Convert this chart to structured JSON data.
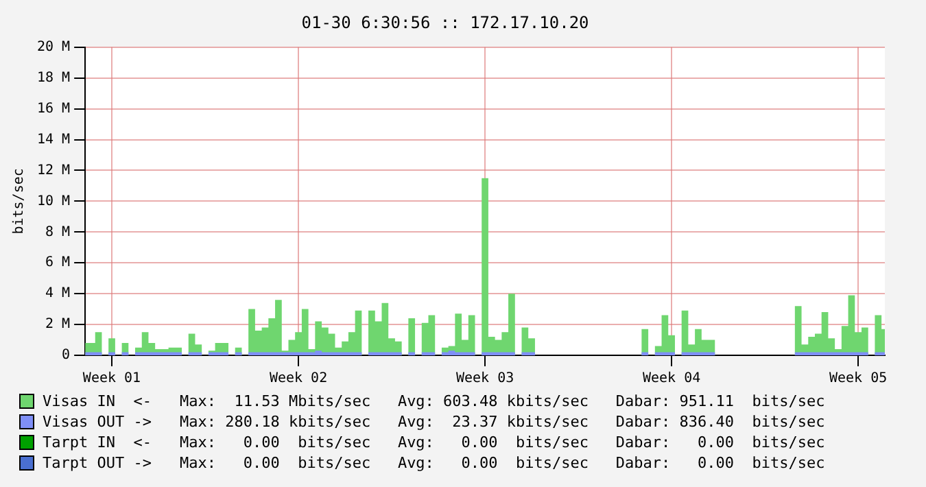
{
  "chart_data": {
    "type": "area",
    "title": "01-30 6:30:56 :: 172.17.10.20",
    "ylabel": "bits/sec",
    "categories": [
      null,
      null,
      null,
      null,
      "Week 01",
      null,
      null,
      null,
      null,
      null,
      null,
      null,
      null,
      null,
      null,
      null,
      null,
      null,
      null,
      null,
      null,
      null,
      null,
      null,
      null,
      null,
      null,
      null,
      null,
      null,
      null,
      null,
      "Week 02",
      null,
      null,
      null,
      null,
      null,
      null,
      null,
      null,
      null,
      null,
      null,
      null,
      null,
      null,
      null,
      null,
      null,
      null,
      null,
      null,
      null,
      null,
      null,
      null,
      null,
      null,
      null,
      "Week 03",
      null,
      null,
      null,
      null,
      null,
      null,
      null,
      null,
      null,
      null,
      null,
      null,
      null,
      null,
      null,
      null,
      null,
      null,
      null,
      null,
      null,
      null,
      null,
      null,
      null,
      null,
      null,
      "Week 04",
      null,
      null,
      null,
      null,
      null,
      null,
      null,
      null,
      null,
      null,
      null,
      null,
      null,
      null,
      null,
      null,
      null,
      null,
      null,
      null,
      null,
      null,
      null,
      null,
      null,
      null,
      null,
      "Week 05",
      null,
      null,
      null,
      null
    ],
    "ylim": [
      0,
      20
    ],
    "yticks": [
      0,
      {
        "value": 2,
        "label": "2 M"
      },
      {
        "value": 4,
        "label": "4 M"
      },
      {
        "value": 6,
        "label": "6 M"
      },
      {
        "value": 8,
        "label": "8 M"
      },
      {
        "value": 10,
        "label": "10 M"
      },
      {
        "value": 12,
        "label": "12 M"
      },
      {
        "value": 14,
        "label": "14 M"
      },
      {
        "value": 16,
        "label": "16 M"
      },
      {
        "value": 18,
        "label": "18 M"
      },
      {
        "value": 20,
        "label": "20 M"
      }
    ],
    "grid": true,
    "legend": "bottom",
    "series": [
      {
        "name": "Visas IN  <-",
        "color": "#6fd66f",
        "values": [
          0.8,
          0.8,
          1.5,
          0,
          1.1,
          0,
          0.8,
          0,
          0.5,
          1.5,
          0.8,
          0.4,
          0.4,
          0.5,
          0.5,
          0,
          1.4,
          0.7,
          0,
          0.3,
          0.8,
          0.8,
          0,
          0.5,
          0,
          3.0,
          1.6,
          1.8,
          2.4,
          3.6,
          0.3,
          1.0,
          1.5,
          3.0,
          0.4,
          2.2,
          1.8,
          1.4,
          0.5,
          0.9,
          1.5,
          2.9,
          0,
          2.9,
          2.2,
          3.4,
          1.1,
          0.9,
          0,
          2.4,
          0,
          2.1,
          2.6,
          0,
          0.5,
          0.6,
          2.7,
          1.0,
          2.6,
          0,
          11.5,
          1.2,
          1.0,
          1.5,
          4.0,
          0,
          1.8,
          1.1,
          0,
          0,
          0,
          0,
          0,
          0,
          0,
          0,
          0,
          0,
          0,
          0,
          0,
          0,
          0,
          0,
          1.7,
          0,
          0.6,
          2.6,
          1.3,
          0,
          2.9,
          0.7,
          1.7,
          1.0,
          1.0,
          0,
          0,
          0,
          0,
          0,
          0,
          0,
          0,
          0,
          0,
          0,
          0,
          3.2,
          0.7,
          1.2,
          1.4,
          2.8,
          1.1,
          0.4,
          1.9,
          3.9,
          1.5,
          1.8,
          0,
          2.6,
          1.7
        ]
      },
      {
        "name": "Visas OUT ->",
        "color": "#7f8ff7",
        "values": [
          0.2,
          0.2,
          0.2,
          0,
          0.2,
          0,
          0.2,
          0,
          0.2,
          0.2,
          0.2,
          0.2,
          0.2,
          0.2,
          0.2,
          0,
          0.2,
          0.2,
          0,
          0.2,
          0.2,
          0.2,
          0,
          0.2,
          0,
          0.2,
          0.2,
          0.2,
          0.2,
          0.2,
          0.2,
          0.2,
          0.2,
          0.2,
          0.2,
          0.3,
          0.2,
          0.2,
          0.2,
          0.2,
          0.2,
          0.2,
          0,
          0.2,
          0.2,
          0.2,
          0.2,
          0.2,
          0,
          0.2,
          0,
          0.2,
          0.2,
          0,
          0.2,
          0.3,
          0.2,
          0.2,
          0.2,
          0,
          0.2,
          0.2,
          0.2,
          0.2,
          0.2,
          0,
          0.2,
          0.2,
          0,
          0,
          0,
          0,
          0,
          0,
          0,
          0,
          0,
          0,
          0,
          0,
          0,
          0,
          0,
          0,
          0.2,
          0,
          0.2,
          0.2,
          0.2,
          0,
          0.2,
          0.2,
          0.2,
          0.2,
          0.2,
          0,
          0,
          0,
          0,
          0,
          0,
          0,
          0,
          0,
          0,
          0,
          0,
          0.2,
          0.2,
          0.2,
          0.2,
          0.2,
          0.2,
          0.2,
          0.2,
          0.2,
          0.2,
          0.2,
          0,
          0.2,
          0.2
        ]
      },
      {
        "name": "Tarpt IN  <-",
        "color": "#00a000",
        "values": [
          null,
          null,
          null,
          null,
          null,
          null,
          null,
          null,
          null,
          null,
          null,
          null,
          null,
          null,
          null,
          null,
          null,
          null,
          null,
          null,
          null,
          null,
          null,
          null,
          null,
          null,
          null,
          null,
          null,
          null,
          null,
          null,
          null,
          null,
          null,
          null,
          null,
          null,
          null,
          null,
          null,
          null,
          null,
          null,
          null,
          null,
          null,
          null,
          null,
          null,
          null,
          null,
          null,
          null,
          null,
          null,
          null,
          null,
          null,
          null,
          null,
          null,
          null,
          null,
          null,
          null,
          null,
          null,
          null,
          null,
          null,
          null,
          null,
          null,
          null,
          null,
          null,
          null,
          null,
          null,
          null,
          null,
          null,
          null,
          null,
          null,
          null,
          null,
          null,
          null,
          null,
          null,
          null,
          null,
          null,
          null,
          null,
          null,
          null,
          null,
          null,
          null,
          null,
          null,
          null,
          null,
          null,
          null,
          null,
          null,
          null,
          null,
          null,
          null,
          null,
          null,
          null,
          null,
          null,
          null,
          null
        ]
      },
      {
        "name": "Tarpt OUT ->",
        "color": "#4a6fd0",
        "values": [
          null,
          null,
          null,
          null,
          null,
          null,
          null,
          null,
          null,
          null,
          null,
          null,
          null,
          null,
          null,
          null,
          null,
          null,
          null,
          null,
          null,
          null,
          null,
          null,
          null,
          null,
          null,
          null,
          null,
          null,
          null,
          null,
          null,
          null,
          null,
          null,
          null,
          null,
          null,
          null,
          null,
          null,
          null,
          null,
          null,
          null,
          null,
          null,
          null,
          null,
          null,
          null,
          null,
          null,
          null,
          null,
          null,
          null,
          null,
          null,
          null,
          null,
          null,
          null,
          null,
          null,
          null,
          null,
          null,
          null,
          null,
          null,
          null,
          null,
          null,
          null,
          null,
          null,
          null,
          null,
          null,
          null,
          null,
          null,
          null,
          null,
          null,
          null,
          null,
          null,
          null,
          null,
          null,
          null,
          null,
          null,
          null,
          null,
          null,
          null,
          null,
          null,
          null,
          null,
          null,
          null,
          null,
          null,
          null,
          null,
          null,
          null,
          null,
          null,
          null,
          null,
          null,
          null,
          null,
          null,
          null
        ]
      }
    ],
    "annotations": [
      "Max:  11.53 Mbits/sec   Avg: 603.48 kbits/sec   Dabar: 951.11  bits/sec",
      "Max: 280.18 kbits/sec   Avg:  23.37 kbits/sec   Dabar: 836.40  bits/sec",
      "Max:   0.00  bits/sec   Avg:   0.00  bits/sec   Dabar:   0.00  bits/sec",
      "Max:   0.00  bits/sec   Avg:   0.00  bits/sec   Dabar:   0.00  bits/sec"
    ]
  }
}
